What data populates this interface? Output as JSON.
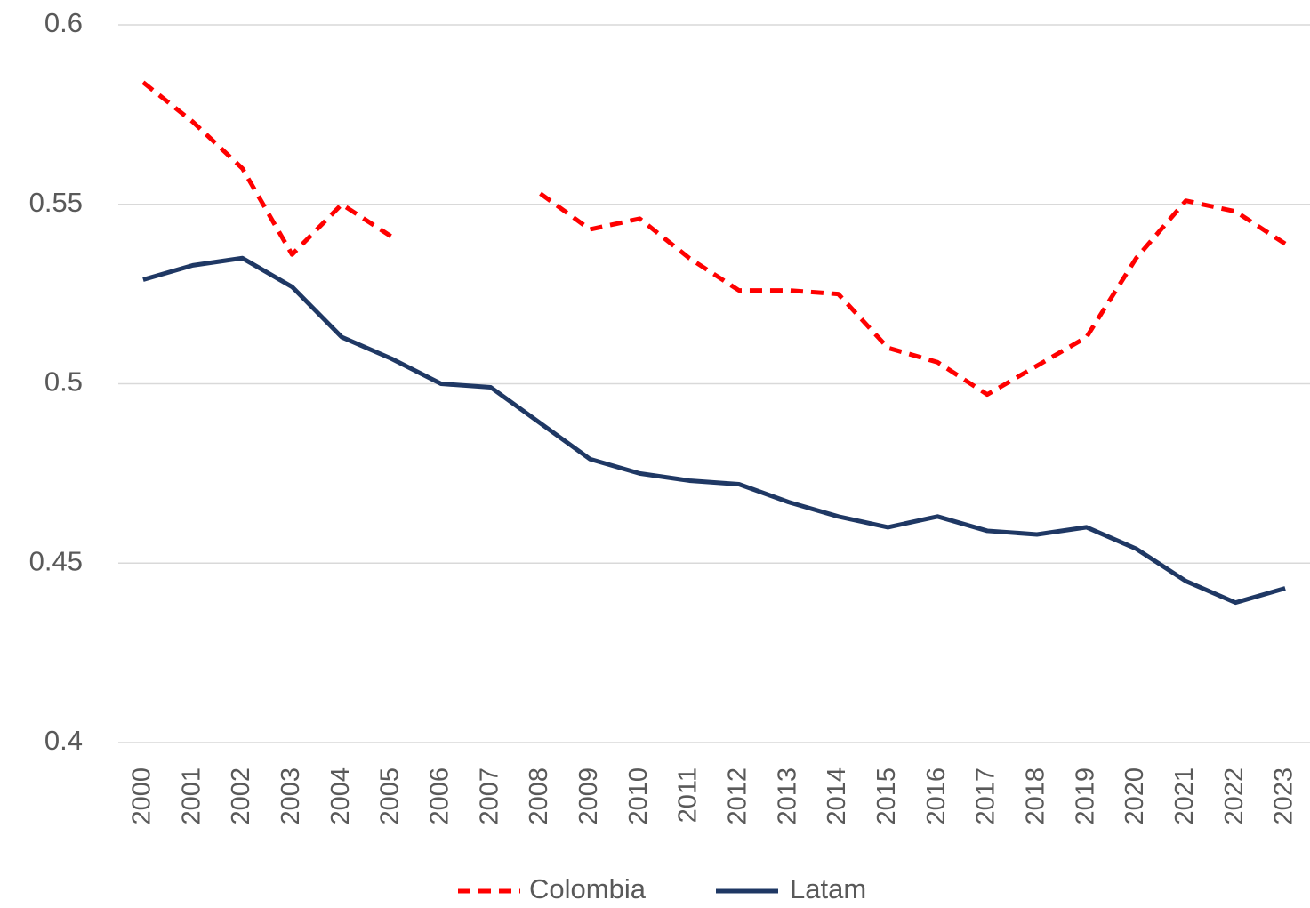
{
  "chart_data": {
    "type": "line",
    "categories": [
      "2000",
      "2001",
      "2002",
      "2003",
      "2004",
      "2005",
      "2006",
      "2007",
      "2008",
      "2009",
      "2010",
      "2011",
      "2012",
      "2013",
      "2014",
      "2015",
      "2016",
      "2017",
      "2018",
      "2019",
      "2020",
      "2021",
      "2022",
      "2023"
    ],
    "series": [
      {
        "name": "Colombia",
        "color": "#ff0000",
        "dash": true,
        "values": [
          0.584,
          0.573,
          0.56,
          0.536,
          0.55,
          0.541,
          null,
          null,
          0.553,
          0.543,
          0.546,
          0.535,
          0.526,
          0.526,
          0.525,
          0.51,
          0.506,
          0.497,
          0.505,
          0.513,
          0.535,
          0.551,
          0.548,
          0.539
        ]
      },
      {
        "name": "Latam",
        "color": "#1f3864",
        "dash": false,
        "values": [
          0.529,
          0.533,
          0.535,
          0.527,
          0.513,
          0.507,
          0.5,
          0.499,
          0.489,
          0.479,
          0.475,
          0.473,
          0.472,
          0.467,
          0.463,
          0.46,
          0.463,
          0.459,
          0.458,
          0.46,
          0.454,
          0.445,
          0.439,
          0.443
        ]
      }
    ],
    "ylim": [
      0.4,
      0.6
    ],
    "yticks": [
      0.4,
      0.45,
      0.5,
      0.55,
      0.6
    ],
    "grid": true,
    "legend": "bottom"
  }
}
